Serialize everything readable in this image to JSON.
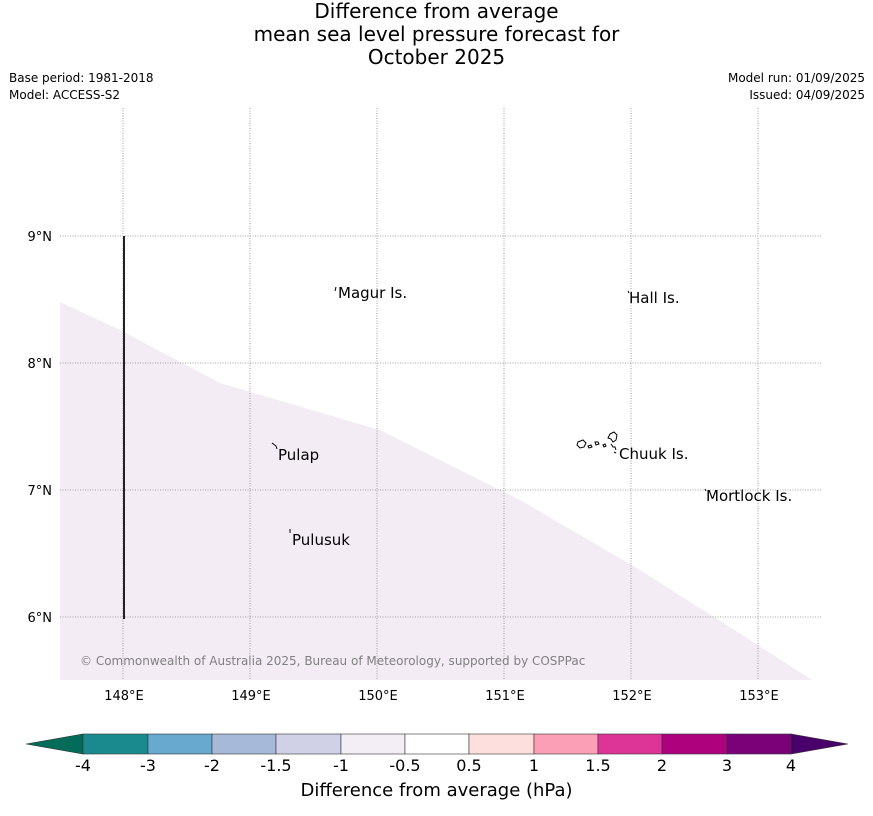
{
  "header": {
    "title_line1": "Difference from average",
    "title_line2": "mean sea level pressure forecast for",
    "title_line3": "October 2025",
    "base_period": "Base period: 1981-2018",
    "model": "Model: ACCESS-S2",
    "model_run": "Model run: 01/09/2025",
    "issued": "Issued: 04/09/2025"
  },
  "map": {
    "lon_labels": [
      "148°E",
      "149°E",
      "150°E",
      "151°E",
      "152°E",
      "153°E"
    ],
    "lat_labels": [
      "9°N",
      "8°N",
      "7°N",
      "6°N"
    ],
    "places": {
      "magur": "Magur Is.",
      "hall": "Hall Is.",
      "chuuk": "Chuuk Is.",
      "pulap": "Pulap",
      "mortlock": "Mortlock Is.",
      "pulusuk": "Pulusuk"
    },
    "copyright": "© Commonwealth of Australia 2025, Bureau of Meteorology, supported by COSPPac",
    "shaded_anomaly_color": "#f3ecf5"
  },
  "colorbar": {
    "ticks": [
      "-4",
      "-3",
      "-2",
      "-1.5",
      "-1",
      "-0.5",
      "0.5",
      "1",
      "1.5",
      "2",
      "3",
      "4"
    ],
    "colors": [
      "#1a8a8e",
      "#67a9cf",
      "#a6b9d9",
      "#d0d1e6",
      "#f3eef6",
      "#ffffff",
      "#fde0dd",
      "#fa9fb5",
      "#dd3497",
      "#ae017e",
      "#7a0177"
    ],
    "under_color": "#016c59",
    "over_color": "#49006a",
    "title": "Difference from average (hPa)"
  }
}
